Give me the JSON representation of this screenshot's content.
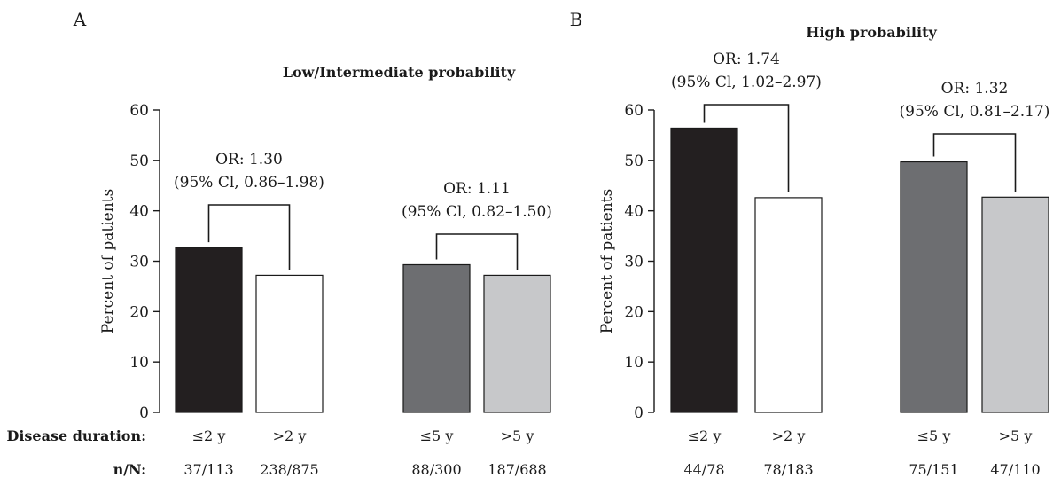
{
  "panel_labels": [
    "A",
    "B"
  ],
  "row_labels": {
    "duration": "Disease duration:",
    "nn": "n/N:"
  },
  "chart_data": [
    {
      "type": "bar",
      "panel": "A",
      "title": "Low/Intermediate probability",
      "ylabel": "Percent of patients",
      "ylim": [
        0,
        60
      ],
      "yticks": [
        0,
        10,
        20,
        30,
        40,
        50,
        60
      ],
      "categories": [
        "≤2 y",
        ">2 y",
        "≤5 y",
        ">5 y"
      ],
      "values": [
        32.7,
        27.2,
        29.3,
        27.2
      ],
      "nn": [
        "37/113",
        "238/875",
        "88/300",
        "187/688"
      ],
      "colors": [
        "#231f20",
        "#ffffff",
        "#6d6e71",
        "#c7c8ca"
      ],
      "annotations": [
        {
          "line1": "OR: 1.30",
          "line2": "(95% Cl, 0.86–1.98)"
        },
        {
          "line1": "OR: 1.11",
          "line2": "(95% Cl, 0.82–1.50)"
        }
      ]
    },
    {
      "type": "bar",
      "panel": "B",
      "title": "High probability",
      "ylabel": "Percent of patients",
      "ylim": [
        0,
        60
      ],
      "yticks": [
        0,
        10,
        20,
        30,
        40,
        50,
        60
      ],
      "categories": [
        "≤2 y",
        ">2 y",
        "≤5 y",
        ">5 y"
      ],
      "values": [
        56.4,
        42.6,
        49.7,
        42.7
      ],
      "nn": [
        "44/78",
        "78/183",
        "75/151",
        "47/110"
      ],
      "colors": [
        "#231f20",
        "#ffffff",
        "#6d6e71",
        "#c7c8ca"
      ],
      "annotations": [
        {
          "line1": "OR: 1.74",
          "line2": "(95% Cl, 1.02–2.97)"
        },
        {
          "line1": "OR: 1.32",
          "line2": "(95% Cl, 0.81–2.17)"
        }
      ]
    }
  ]
}
